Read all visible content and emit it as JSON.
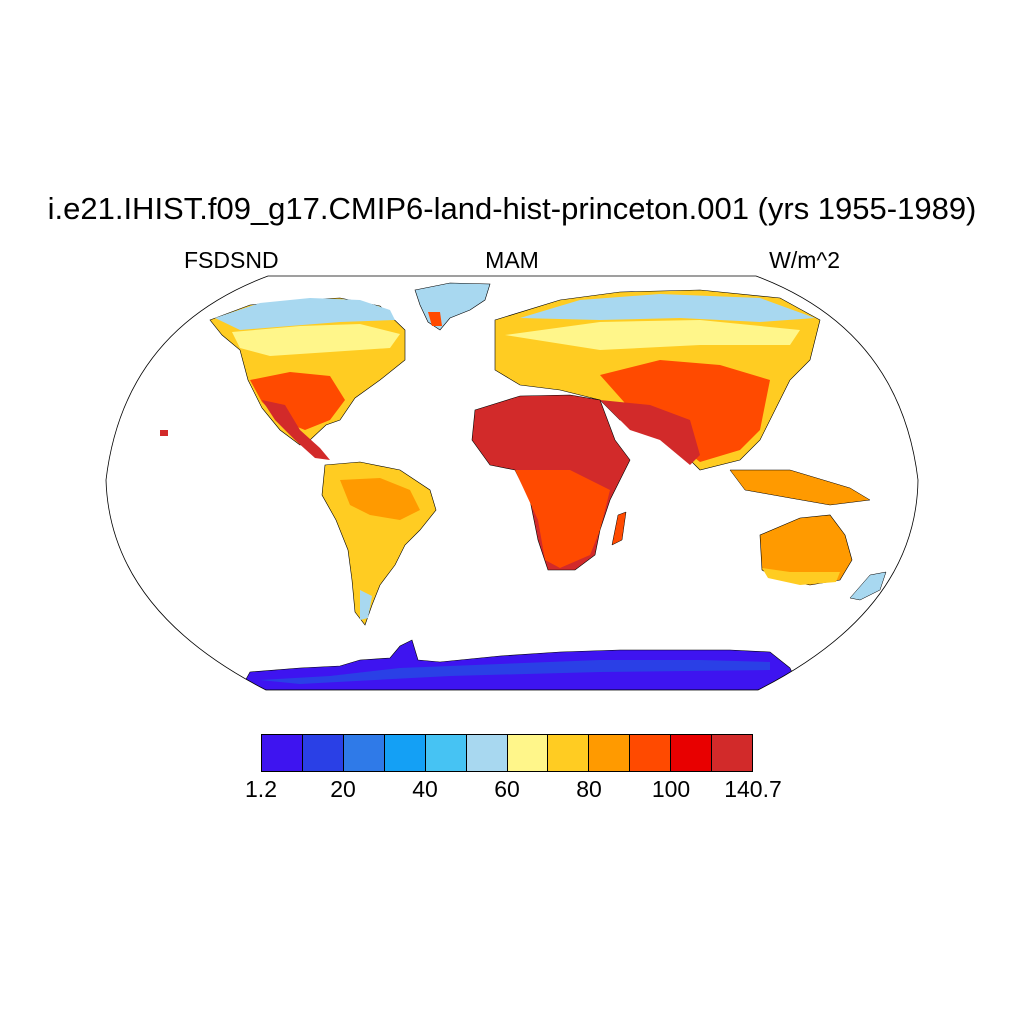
{
  "header": {
    "title": "i.e21.IHIST.f09_g17.CMIP6-land-hist-princeton.001 (yrs 1955-1989)",
    "variable": "FSDSND",
    "season": "MAM",
    "units": "W/m^2"
  },
  "map": {
    "projection": "Robinson",
    "field": "FSDSND",
    "regions": [
      {
        "name": "Antarctica",
        "level": 1.2
      },
      {
        "name": "Greenland",
        "level": 50
      },
      {
        "name": "North Africa & Arabia",
        "level": 120
      },
      {
        "name": "India",
        "level": 120
      },
      {
        "name": "Mexico",
        "level": 110
      },
      {
        "name": "Amazon",
        "level": 80
      },
      {
        "name": "Australia",
        "level": 95
      },
      {
        "name": "Siberia",
        "level": 55
      },
      {
        "name": "Canada",
        "level": 70
      }
    ]
  },
  "colorbar": {
    "colors": [
      "#3e14f0",
      "#2a40e6",
      "#2f7ae8",
      "#14a0f5",
      "#46c3f3",
      "#a8d8f0",
      "#fff68a",
      "#ffcc22",
      "#ff9a00",
      "#ff4a00",
      "#e80000",
      "#d22a2a"
    ],
    "labels": [
      "1.2",
      "20",
      "40",
      "60",
      "80",
      "100",
      "140.7"
    ]
  }
}
